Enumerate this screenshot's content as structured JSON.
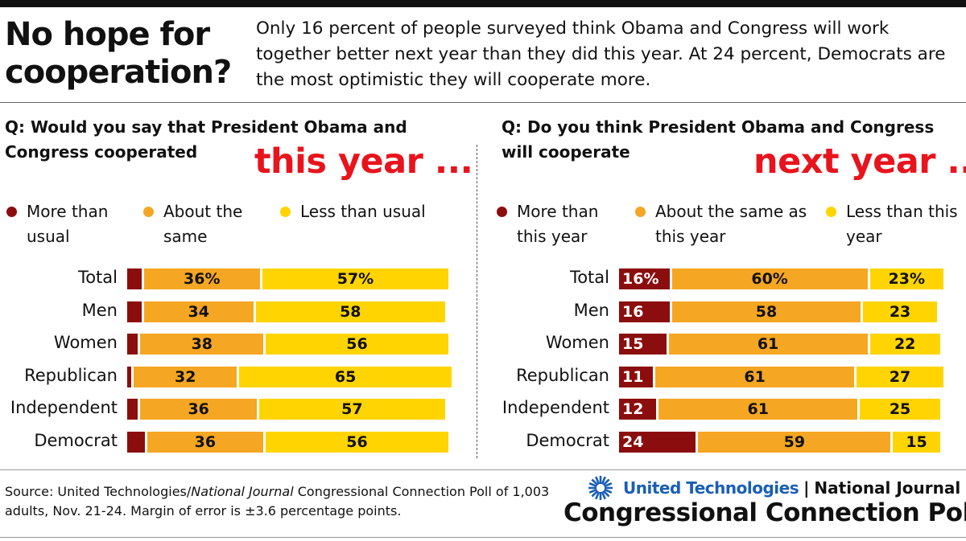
{
  "title": "No hope for cooperation?",
  "intro": "Only 16 percent of people surveyed think Obama and Congress will work together better next year than they did this year. At 24 percent, Democrats are the most optimistic they will cooperate more.",
  "colors": {
    "more": "#8b0d0d",
    "same": "#f5a623",
    "less": "#ffd400",
    "accent": "#e8141d",
    "brand": "#1a5fb4"
  },
  "source_parts": {
    "pre": "Source: United Technologies/",
    "italic": "National Journal",
    "post": " Congressional Connection Poll of 1,003 adults, Nov. 21-24. Margin of error is ±3.6 percentage points."
  },
  "branding": {
    "ut": "United Technologies",
    "sep": "|",
    "nj": "National Journal",
    "poll": "Congressional Connection Poll"
  },
  "chart_data": [
    {
      "type": "bar",
      "stacked": true,
      "orientation": "horizontal",
      "question": "Q: Would you say that President Obama and Congress cooperated",
      "period": "this year ...",
      "categories": [
        "Total",
        "Men",
        "Women",
        "Republican",
        "Independent",
        "Democrat"
      ],
      "series": [
        {
          "name": "More than usual",
          "values": [
            5,
            5,
            4,
            2,
            4,
            6
          ],
          "color": "#8b0d0d"
        },
        {
          "name": "About the same",
          "values": [
            36,
            34,
            38,
            32,
            36,
            36
          ],
          "color": "#f5a623"
        },
        {
          "name": "Less than usual",
          "values": [
            57,
            58,
            56,
            65,
            57,
            56
          ],
          "color": "#ffd400"
        }
      ],
      "label_suffix_first_row": "%"
    },
    {
      "type": "bar",
      "stacked": true,
      "orientation": "horizontal",
      "question": "Q: Do you think President Obama and Congress will cooperate",
      "period": "next year ...",
      "categories": [
        "Total",
        "Men",
        "Women",
        "Republican",
        "Independent",
        "Democrat"
      ],
      "series": [
        {
          "name": "More than this year",
          "values": [
            16,
            16,
            15,
            11,
            12,
            24
          ],
          "color": "#8b0d0d"
        },
        {
          "name": "About the same as this year",
          "values": [
            60,
            58,
            61,
            61,
            61,
            59
          ],
          "color": "#f5a623"
        },
        {
          "name": "Less than this year",
          "values": [
            23,
            23,
            22,
            27,
            25,
            15
          ],
          "color": "#ffd400"
        }
      ],
      "label_suffix_first_row": "%"
    }
  ]
}
